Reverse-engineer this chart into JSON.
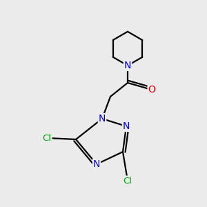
{
  "bg_color": "#ebebeb",
  "bond_color": "#000000",
  "bond_width": 1.6,
  "atom_colors": {
    "N": "#0000cc",
    "O": "#ee0000",
    "Cl": "#00aa00",
    "C": "#000000"
  },
  "font_size_N": 10,
  "font_size_O": 10,
  "font_size_Cl": 9.5,
  "figsize": [
    3.0,
    3.0
  ],
  "dpi": 100
}
